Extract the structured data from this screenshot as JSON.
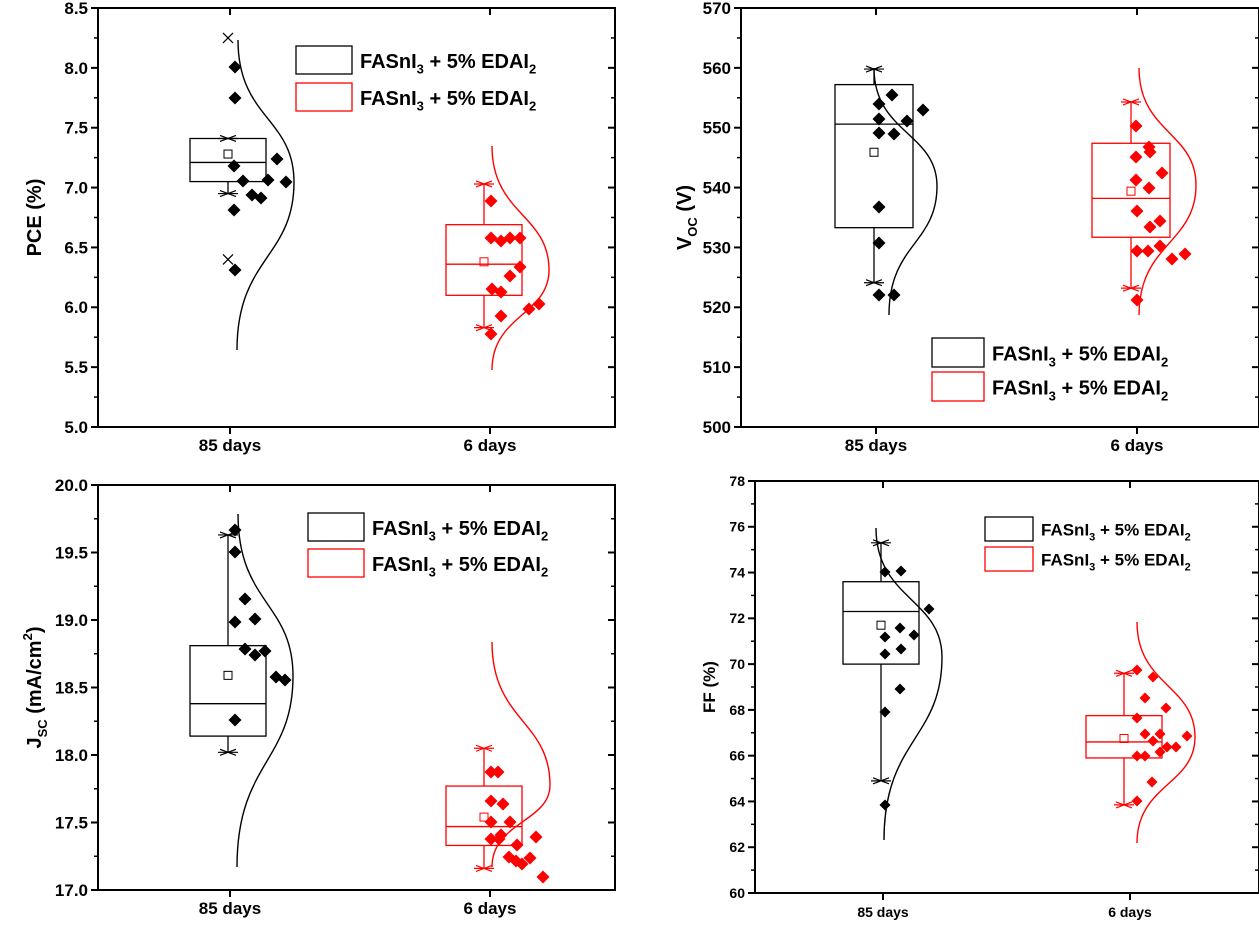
{
  "colors": {
    "black": "#000000",
    "red": "#ff0000"
  },
  "chart_data": [
    {
      "type": "box",
      "id": "pce",
      "ylabel": "PCE (%)",
      "ylim": [
        5.0,
        8.5
      ],
      "yticks": [
        "5.0",
        "5.5",
        "6.0",
        "6.5",
        "7.0",
        "7.5",
        "8.0",
        "8.5"
      ],
      "categories": [
        "85 days",
        "6 days"
      ],
      "legend": [
        "FASnI3 + 5% EDAI2",
        "FASnI3 + 5% EDAI2"
      ],
      "legend_position": "top-right",
      "series": [
        {
          "color": "#000000",
          "box": {
            "q1": 7.05,
            "median": 7.21,
            "q3": 7.41,
            "mean": 7.28,
            "whisker_low": 6.95,
            "whisker_high": 7.41,
            "outliers": [
              8.25,
              6.4
            ]
          },
          "points": [
            8.25,
            7.97,
            7.35,
            7.21,
            7.08,
            7.05,
            7.23,
            7.41,
            7.2,
            6.95,
            6.4
          ]
        },
        {
          "color": "#ff0000",
          "box": {
            "q1": 6.1,
            "median": 6.36,
            "q3": 6.69,
            "mean": 6.38,
            "whisker_low": 5.83,
            "whisker_high": 7.03,
            "outliers": []
          },
          "points": [
            7.03,
            6.69,
            6.65,
            6.69,
            6.7,
            6.43,
            6.36,
            6.23,
            6.2,
            5.99,
            6.05,
            6.1,
            5.83
          ]
        }
      ]
    },
    {
      "type": "box",
      "id": "voc",
      "ylabel": "VOC (V)",
      "ylim": [
        500,
        570
      ],
      "yticks": [
        "500",
        "510",
        "520",
        "530",
        "540",
        "550",
        "560",
        "570"
      ],
      "categories": [
        "85 days",
        "6 days"
      ],
      "legend": [
        "FASnI3 + 5% EDAI2",
        "FASnI3 + 5% EDAI2"
      ],
      "legend_position": "bottom-right",
      "series": [
        {
          "color": "#000000",
          "box": {
            "q1": 533.3,
            "median": 550.6,
            "q3": 557.2,
            "mean": 545.9,
            "whisker_low": 524.1,
            "whisker_high": 559.8,
            "outliers": []
          },
          "points": [
            558.6,
            559.8,
            555.4,
            557.2,
            553.0,
            550.6,
            548.2,
            539.8,
            533.3,
            524.1,
            524.0
          ]
        },
        {
          "color": "#ff0000",
          "box": {
            "q1": 531.7,
            "median": 538.2,
            "q3": 547.4,
            "mean": 539.4,
            "whisker_low": 523.2,
            "whisker_high": 554.3,
            "outliers": []
          },
          "points": [
            554.3,
            550.7,
            549.1,
            549.6,
            545.9,
            544.7,
            543.3,
            539.3,
            537.2,
            536.4,
            532.6,
            531.8,
            531.7,
            530.6,
            531.5,
            523.2
          ]
        }
      ]
    },
    {
      "type": "box",
      "id": "jsc",
      "ylabel": "JSC (mA/cm2)",
      "ylim": [
        17.0,
        20.0
      ],
      "yticks": [
        "17.0",
        "17.5",
        "18.0",
        "18.5",
        "19.0",
        "19.5",
        "20.0"
      ],
      "categories": [
        "85 days",
        "6 days"
      ],
      "legend": [
        "FASnI3 + 5% EDAI2",
        "FASnI3 + 5% EDAI2"
      ],
      "legend_position": "top-right",
      "series": [
        {
          "color": "#000000",
          "box": {
            "q1": 18.14,
            "median": 18.38,
            "q3": 18.81,
            "mean": 18.59,
            "whisker_low": 18.02,
            "whisker_high": 19.63,
            "outliers": []
          },
          "points": [
            19.63,
            19.44,
            18.81,
            18.64,
            18.62,
            18.38,
            18.33,
            18.37,
            18.14,
            18.13,
            18.02
          ]
        },
        {
          "color": "#ff0000",
          "box": {
            "q1": 17.33,
            "median": 17.47,
            "q3": 17.77,
            "mean": 17.54,
            "whisker_low": 17.16,
            "whisker_high": 18.05,
            "outliers": []
          },
          "points": [
            18.05,
            18.05,
            17.8,
            17.78,
            17.63,
            17.63,
            17.47,
            17.47,
            17.43,
            17.33,
            17.3,
            17.28,
            17.27,
            17.33,
            17.49,
            17.16
          ]
        }
      ]
    },
    {
      "type": "box",
      "id": "ff",
      "ylabel": "FF (%)",
      "ylim": [
        60,
        78
      ],
      "yticks": [
        "60",
        "62",
        "64",
        "66",
        "68",
        "70",
        "72",
        "74",
        "76",
        "78"
      ],
      "categories": [
        "85 days",
        "6 days"
      ],
      "legend": [
        "FASnI3 + 5% EDAI2",
        "FASnI3 + 5% EDAI2"
      ],
      "legend_position": "top-right",
      "series": [
        {
          "color": "#000000",
          "box": {
            "q1": 70.0,
            "median": 72.3,
            "q3": 73.6,
            "mean": 71.7,
            "whisker_low": 64.9,
            "whisker_high": 75.3,
            "outliers": []
          },
          "points": [
            75.25,
            75.3,
            72.3,
            72.7,
            72.4,
            71.85,
            71.6,
            73.6,
            70.0,
            69.05,
            64.9
          ]
        },
        {
          "color": "#ff0000",
          "box": {
            "q1": 65.9,
            "median": 66.6,
            "q3": 67.75,
            "mean": 66.75,
            "whisker_low": 63.85,
            "whisker_high": 69.6,
            "outliers": []
          },
          "points": [
            69.6,
            69.3,
            68.4,
            67.95,
            67.5,
            66.85,
            66.8,
            66.5,
            66.25,
            66.25,
            66.0,
            66.7,
            65.75,
            65.75,
            64.65,
            63.85
          ]
        }
      ]
    }
  ]
}
